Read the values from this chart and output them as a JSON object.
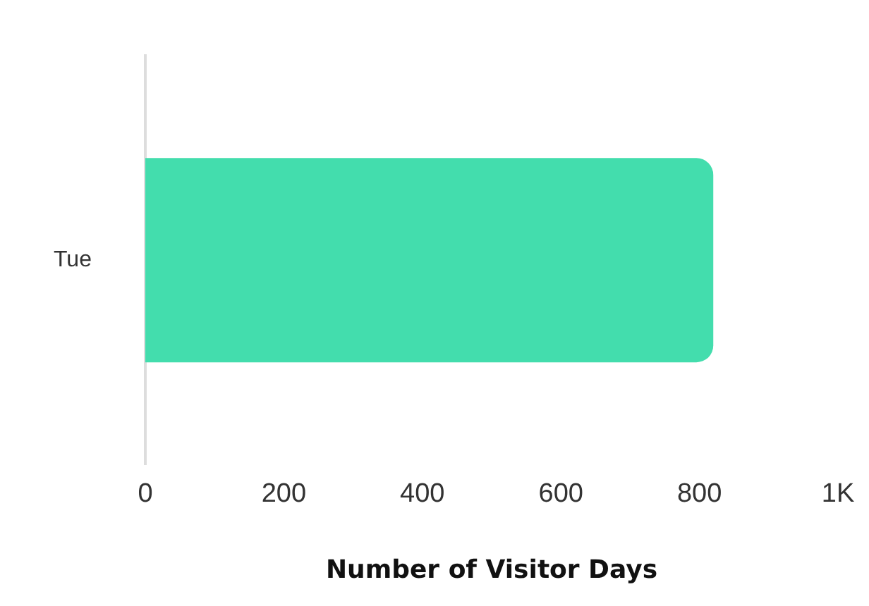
{
  "chart_data": {
    "type": "bar",
    "orientation": "horizontal",
    "categories": [
      "Tue"
    ],
    "values": [
      820
    ],
    "color": "#43ddad",
    "xlabel": "Number of Visitor Days",
    "xlim": [
      0,
      1000
    ],
    "xticks": [
      0,
      200,
      400,
      600,
      800,
      {
        "value": 1000,
        "label": "1K"
      }
    ],
    "grid": false,
    "legend": false
  }
}
